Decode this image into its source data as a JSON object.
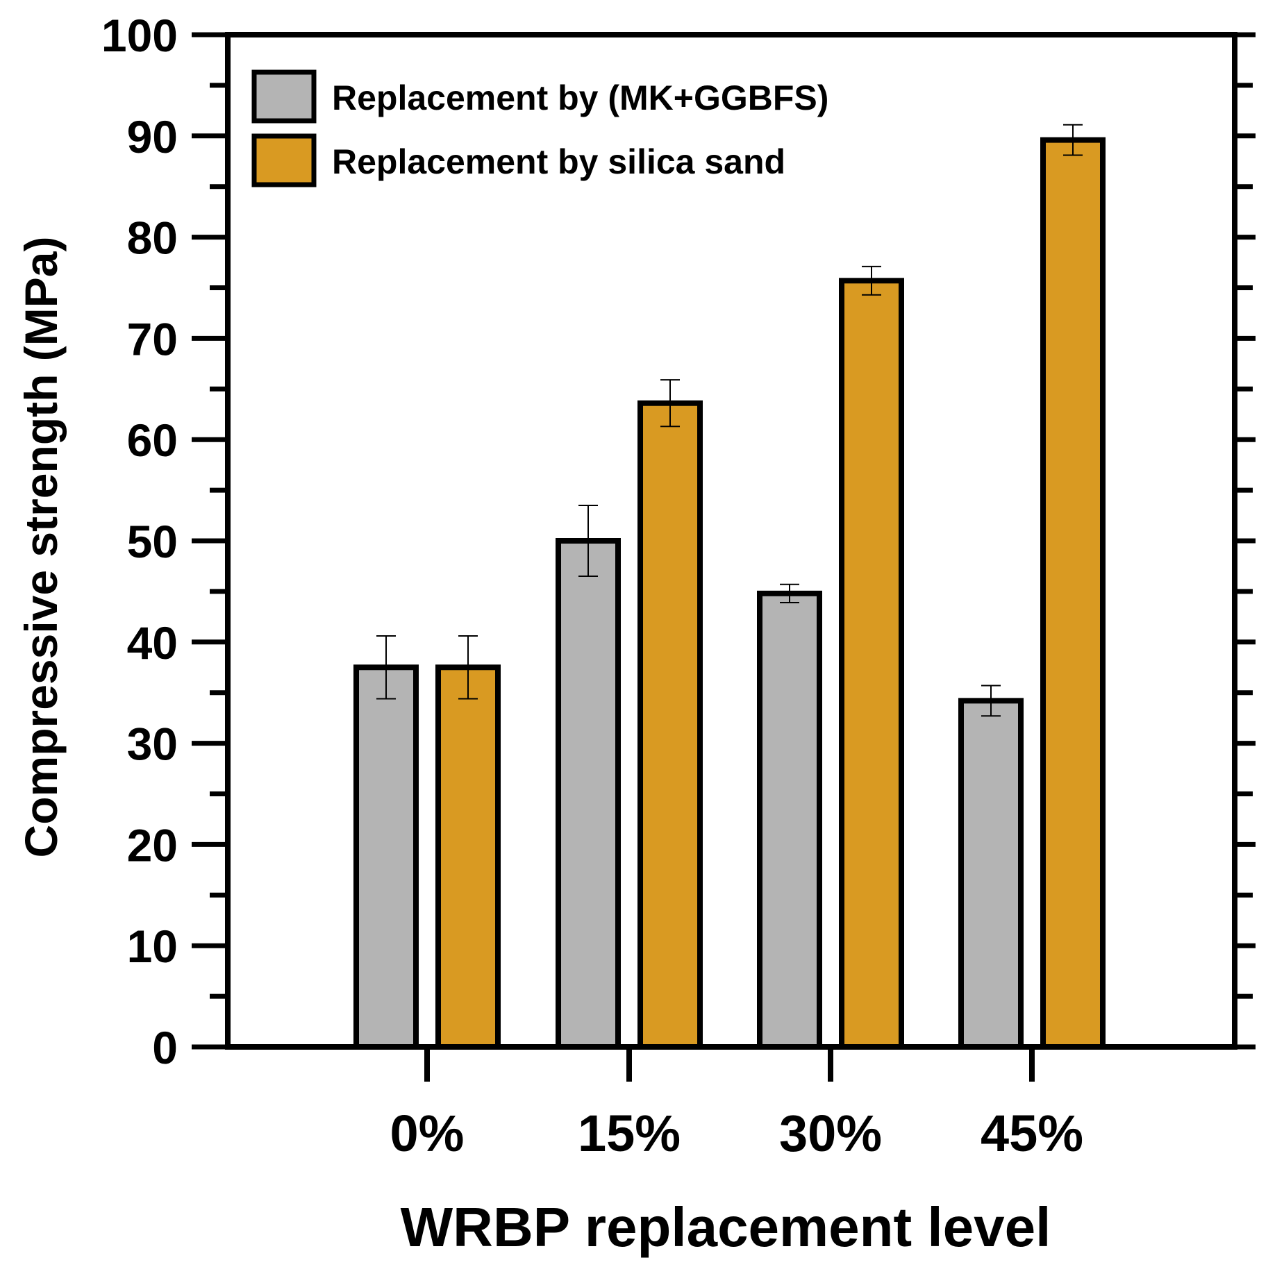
{
  "chart_data": {
    "type": "bar",
    "title": "",
    "xlabel": "WRBP replacement level",
    "ylabel": "Compressive strength (MPa)",
    "ylim": [
      0,
      100
    ],
    "yticks": [
      "0",
      "10",
      "20",
      "30",
      "40",
      "50",
      "60",
      "70",
      "80",
      "90",
      "100"
    ],
    "categories": [
      "0%",
      "15%",
      "30%",
      "45%"
    ],
    "legend_position": "top-left",
    "series": [
      {
        "name": "Replacement by (MK+GGBFS)",
        "color": "#b4b4b4",
        "values": [
          37.5,
          50.0,
          44.8,
          34.2
        ],
        "errors": [
          3.1,
          3.5,
          0.9,
          1.5
        ]
      },
      {
        "name": "Replacement by silica sand",
        "color": "#d99a22",
        "values": [
          37.5,
          63.6,
          75.7,
          89.6
        ],
        "errors": [
          3.1,
          2.3,
          1.4,
          1.5
        ]
      }
    ]
  }
}
